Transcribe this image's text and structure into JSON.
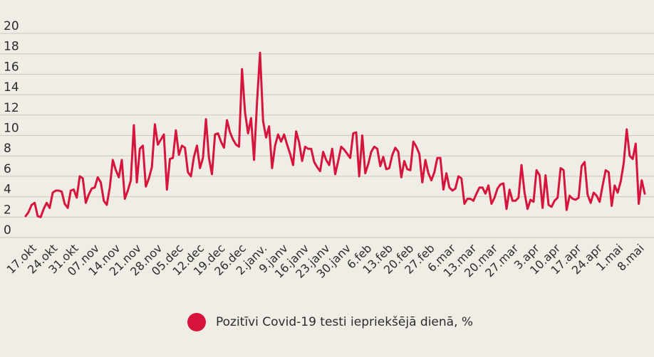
{
  "chart_data": {
    "type": "line",
    "title": "",
    "xlabel": "",
    "ylabel": "",
    "ylim": [
      0,
      20
    ],
    "yticks": [
      "0",
      "2",
      "4",
      "6",
      "8",
      "10",
      "12",
      "14",
      "16",
      "18",
      "20"
    ],
    "xtick_labels": [
      "17.okt",
      "24.okt",
      "31.okt",
      "07.nov",
      "14.nov",
      "21.nov",
      "28.nov",
      "05.dec",
      "12.dec",
      "19.dec",
      "26.dec",
      "2.janv.",
      "9.janv",
      "16.janv",
      "23.janv",
      "30.janv",
      "6.feb",
      "13.feb",
      "20.feb",
      "27.feb",
      "6.mar",
      "13.mar",
      "20.mar",
      "27.mar",
      "3.apr",
      "10.apr",
      "17.apr",
      "24.apr",
      "1.mai",
      "8.mai"
    ],
    "grid": true,
    "legend_position": "bottom",
    "series": [
      {
        "name": "Pozitīvi Covid-19 testi iepriekšējā dienā, %",
        "color": "#d6143c",
        "values": [
          2.1,
          2.5,
          3.2,
          3.4,
          2.1,
          2.0,
          2.8,
          3.4,
          2.9,
          4.4,
          4.6,
          4.6,
          4.5,
          3.3,
          2.9,
          4.6,
          4.7,
          3.9,
          6.0,
          5.8,
          3.4,
          4.2,
          4.8,
          4.9,
          5.9,
          5.4,
          3.6,
          3.2,
          4.9,
          7.6,
          6.6,
          5.9,
          7.6,
          3.8,
          4.6,
          5.6,
          11.0,
          5.4,
          8.7,
          9.0,
          5.0,
          5.8,
          6.9,
          11.1,
          9.1,
          9.6,
          10.1,
          4.7,
          7.7,
          7.8,
          10.5,
          8.1,
          9.0,
          8.8,
          6.4,
          6.0,
          7.9,
          9.0,
          6.8,
          7.8,
          11.6,
          7.8,
          6.2,
          10.1,
          10.2,
          9.4,
          8.8,
          11.5,
          10.3,
          9.6,
          9.1,
          8.9,
          16.5,
          12.3,
          10.2,
          11.7,
          7.6,
          13.3,
          18.1,
          11.4,
          9.8,
          10.9,
          6.8,
          9.0,
          10.1,
          9.4,
          10.1,
          9.1,
          8.2,
          7.1,
          10.4,
          9.3,
          7.5,
          8.9,
          8.7,
          8.7,
          7.4,
          6.9,
          6.5,
          8.4,
          7.6,
          7.1,
          8.7,
          6.2,
          7.5,
          8.9,
          8.6,
          8.2,
          7.8,
          10.2,
          10.3,
          6.0,
          10.0,
          6.3,
          7.2,
          8.4,
          8.9,
          8.7,
          7.0,
          7.9,
          6.7,
          6.8,
          8.1,
          8.8,
          8.4,
          5.9,
          7.5,
          6.7,
          6.6,
          9.4,
          8.9,
          8.2,
          5.4,
          7.6,
          6.3,
          5.6,
          6.4,
          7.8,
          7.8,
          4.7,
          6.3,
          4.9,
          4.6,
          4.8,
          6.0,
          5.8,
          3.3,
          3.8,
          3.8,
          3.6,
          4.3,
          4.9,
          4.9,
          4.3,
          5.1,
          3.3,
          3.9,
          4.8,
          5.2,
          5.3,
          2.8,
          4.7,
          3.6,
          3.6,
          3.9,
          7.1,
          4.4,
          2.8,
          3.7,
          3.5,
          6.6,
          6.1,
          2.9,
          6.1,
          3.2,
          3.0,
          3.6,
          3.9,
          6.8,
          6.6,
          2.7,
          4.1,
          3.8,
          3.7,
          3.9,
          7.0,
          7.4,
          4.2,
          3.4,
          4.4,
          4.1,
          3.5,
          5.1,
          6.6,
          6.4,
          3.1,
          5.1,
          4.4,
          5.5,
          7.3,
          10.6,
          8.0,
          7.7,
          9.2,
          3.3,
          5.6,
          4.3
        ]
      }
    ]
  },
  "legend": {
    "label": "Pozitīvi Covid-19 testi iepriekšējā dienā, %",
    "color": "#d6143c"
  }
}
